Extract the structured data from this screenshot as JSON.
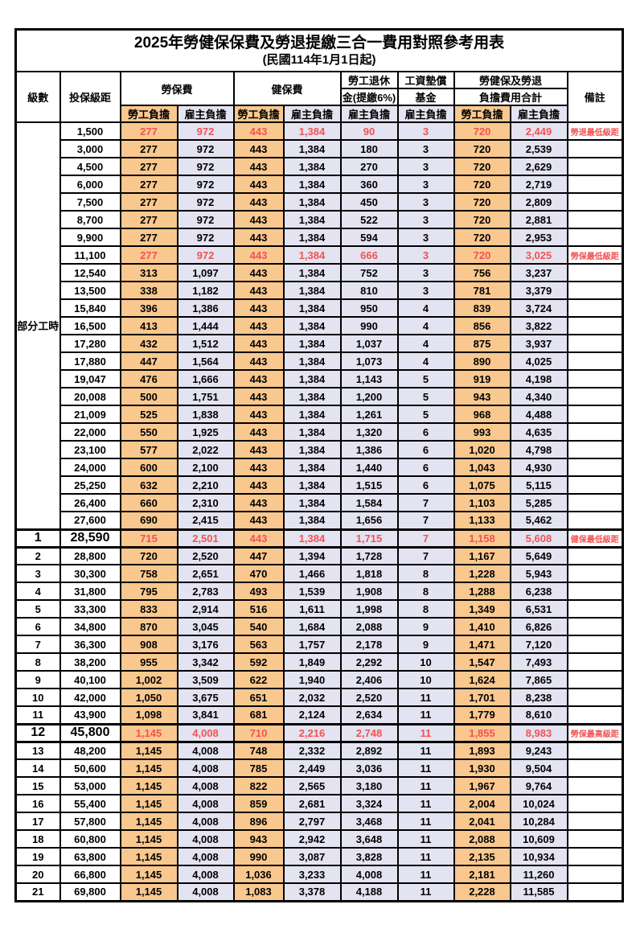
{
  "title": "2025年勞健保保費及勞退提繳三合一費用對照參考用表",
  "subtitle": "(民國114年1月1日起)",
  "columns": {
    "level": "級數",
    "bracket": "投保級距",
    "labor_insurance": "勞保費",
    "health_insurance": "健保費",
    "pension": [
      "勞工退休",
      "金(提繳6%)"
    ],
    "wage_fund": [
      "工資墊償",
      "基金"
    ],
    "total": [
      "勞健保及勞退",
      "負擔費用合計"
    ],
    "remark": "備註",
    "employee_burden": "勞工負擔",
    "employer_burden": "雇主負擔"
  },
  "part_time": {
    "label": "部分工時",
    "rowspan": 23
  },
  "colors": {
    "employee_bg": "#F9C88F",
    "employer_bg": "#E3E3F1",
    "highlight_red": "#F25252",
    "border": "#000000"
  },
  "rows": [
    {
      "bracket": "1,500",
      "cells": [
        "277",
        "972",
        "443",
        "1,384",
        "90",
        "3",
        "720",
        "2,449"
      ],
      "note": "勞退最低級距",
      "red": true
    },
    {
      "bracket": "3,000",
      "cells": [
        "277",
        "972",
        "443",
        "1,384",
        "180",
        "3",
        "720",
        "2,539"
      ],
      "note": ""
    },
    {
      "bracket": "4,500",
      "cells": [
        "277",
        "972",
        "443",
        "1,384",
        "270",
        "3",
        "720",
        "2,629"
      ],
      "note": ""
    },
    {
      "bracket": "6,000",
      "cells": [
        "277",
        "972",
        "443",
        "1,384",
        "360",
        "3",
        "720",
        "2,719"
      ],
      "note": ""
    },
    {
      "bracket": "7,500",
      "cells": [
        "277",
        "972",
        "443",
        "1,384",
        "450",
        "3",
        "720",
        "2,809"
      ],
      "note": ""
    },
    {
      "bracket": "8,700",
      "cells": [
        "277",
        "972",
        "443",
        "1,384",
        "522",
        "3",
        "720",
        "2,881"
      ],
      "note": ""
    },
    {
      "bracket": "9,900",
      "cells": [
        "277",
        "972",
        "443",
        "1,384",
        "594",
        "3",
        "720",
        "2,953"
      ],
      "note": ""
    },
    {
      "bracket": "11,100",
      "cells": [
        "277",
        "972",
        "443",
        "1,384",
        "666",
        "3",
        "720",
        "3,025"
      ],
      "note": "勞保最低級距",
      "red": true
    },
    {
      "bracket": "12,540",
      "cells": [
        "313",
        "1,097",
        "443",
        "1,384",
        "752",
        "3",
        "756",
        "3,237"
      ],
      "note": ""
    },
    {
      "bracket": "13,500",
      "cells": [
        "338",
        "1,182",
        "443",
        "1,384",
        "810",
        "3",
        "781",
        "3,379"
      ],
      "note": ""
    },
    {
      "bracket": "15,840",
      "cells": [
        "396",
        "1,386",
        "443",
        "1,384",
        "950",
        "4",
        "839",
        "3,724"
      ],
      "note": ""
    },
    {
      "bracket": "16,500",
      "cells": [
        "413",
        "1,444",
        "443",
        "1,384",
        "990",
        "4",
        "856",
        "3,822"
      ],
      "note": ""
    },
    {
      "bracket": "17,280",
      "cells": [
        "432",
        "1,512",
        "443",
        "1,384",
        "1,037",
        "4",
        "875",
        "3,937"
      ],
      "note": ""
    },
    {
      "bracket": "17,880",
      "cells": [
        "447",
        "1,564",
        "443",
        "1,384",
        "1,073",
        "4",
        "890",
        "4,025"
      ],
      "note": ""
    },
    {
      "bracket": "19,047",
      "cells": [
        "476",
        "1,666",
        "443",
        "1,384",
        "1,143",
        "5",
        "919",
        "4,198"
      ],
      "note": ""
    },
    {
      "bracket": "20,008",
      "cells": [
        "500",
        "1,751",
        "443",
        "1,384",
        "1,200",
        "5",
        "943",
        "4,340"
      ],
      "note": ""
    },
    {
      "bracket": "21,009",
      "cells": [
        "525",
        "1,838",
        "443",
        "1,384",
        "1,261",
        "5",
        "968",
        "4,488"
      ],
      "note": ""
    },
    {
      "bracket": "22,000",
      "cells": [
        "550",
        "1,925",
        "443",
        "1,384",
        "1,320",
        "6",
        "993",
        "4,635"
      ],
      "note": ""
    },
    {
      "bracket": "23,100",
      "cells": [
        "577",
        "2,022",
        "443",
        "1,384",
        "1,386",
        "6",
        "1,020",
        "4,798"
      ],
      "note": ""
    },
    {
      "bracket": "24,000",
      "cells": [
        "600",
        "2,100",
        "443",
        "1,384",
        "1,440",
        "6",
        "1,043",
        "4,930"
      ],
      "note": ""
    },
    {
      "bracket": "25,250",
      "cells": [
        "632",
        "2,210",
        "443",
        "1,384",
        "1,515",
        "6",
        "1,075",
        "5,115"
      ],
      "note": ""
    },
    {
      "bracket": "26,400",
      "cells": [
        "660",
        "2,310",
        "443",
        "1,384",
        "1,584",
        "7",
        "1,103",
        "5,285"
      ],
      "note": ""
    },
    {
      "bracket": "27,600",
      "cells": [
        "690",
        "2,415",
        "443",
        "1,384",
        "1,656",
        "7",
        "1,133",
        "5,462"
      ],
      "note": ""
    },
    {
      "level": "1",
      "bracket": "28,590",
      "cells": [
        "715",
        "2,501",
        "443",
        "1,384",
        "1,715",
        "7",
        "1,158",
        "5,608"
      ],
      "note": "健保最低級距",
      "red": true,
      "big": true
    },
    {
      "level": "2",
      "bracket": "28,800",
      "cells": [
        "720",
        "2,520",
        "447",
        "1,394",
        "1,728",
        "7",
        "1,167",
        "5,649"
      ],
      "note": ""
    },
    {
      "level": "3",
      "bracket": "30,300",
      "cells": [
        "758",
        "2,651",
        "470",
        "1,466",
        "1,818",
        "8",
        "1,228",
        "5,943"
      ],
      "note": ""
    },
    {
      "level": "4",
      "bracket": "31,800",
      "cells": [
        "795",
        "2,783",
        "493",
        "1,539",
        "1,908",
        "8",
        "1,288",
        "6,238"
      ],
      "note": ""
    },
    {
      "level": "5",
      "bracket": "33,300",
      "cells": [
        "833",
        "2,914",
        "516",
        "1,611",
        "1,998",
        "8",
        "1,349",
        "6,531"
      ],
      "note": ""
    },
    {
      "level": "6",
      "bracket": "34,800",
      "cells": [
        "870",
        "3,045",
        "540",
        "1,684",
        "2,088",
        "9",
        "1,410",
        "6,826"
      ],
      "note": ""
    },
    {
      "level": "7",
      "bracket": "36,300",
      "cells": [
        "908",
        "3,176",
        "563",
        "1,757",
        "2,178",
        "9",
        "1,471",
        "7,120"
      ],
      "note": ""
    },
    {
      "level": "8",
      "bracket": "38,200",
      "cells": [
        "955",
        "3,342",
        "592",
        "1,849",
        "2,292",
        "10",
        "1,547",
        "7,493"
      ],
      "note": ""
    },
    {
      "level": "9",
      "bracket": "40,100",
      "cells": [
        "1,002",
        "3,509",
        "622",
        "1,940",
        "2,406",
        "10",
        "1,624",
        "7,865"
      ],
      "note": ""
    },
    {
      "level": "10",
      "bracket": "42,000",
      "cells": [
        "1,050",
        "3,675",
        "651",
        "2,032",
        "2,520",
        "11",
        "1,701",
        "8,238"
      ],
      "note": ""
    },
    {
      "level": "11",
      "bracket": "43,900",
      "cells": [
        "1,098",
        "3,841",
        "681",
        "2,124",
        "2,634",
        "11",
        "1,779",
        "8,610"
      ],
      "note": ""
    },
    {
      "level": "12",
      "bracket": "45,800",
      "cells": [
        "1,145",
        "4,008",
        "710",
        "2,216",
        "2,748",
        "11",
        "1,855",
        "8,983"
      ],
      "note": "勞保最高級距",
      "red": true,
      "big": true
    },
    {
      "level": "13",
      "bracket": "48,200",
      "cells": [
        "1,145",
        "4,008",
        "748",
        "2,332",
        "2,892",
        "11",
        "1,893",
        "9,243"
      ],
      "note": ""
    },
    {
      "level": "14",
      "bracket": "50,600",
      "cells": [
        "1,145",
        "4,008",
        "785",
        "2,449",
        "3,036",
        "11",
        "1,930",
        "9,504"
      ],
      "note": ""
    },
    {
      "level": "15",
      "bracket": "53,000",
      "cells": [
        "1,145",
        "4,008",
        "822",
        "2,565",
        "3,180",
        "11",
        "1,967",
        "9,764"
      ],
      "note": ""
    },
    {
      "level": "16",
      "bracket": "55,400",
      "cells": [
        "1,145",
        "4,008",
        "859",
        "2,681",
        "3,324",
        "11",
        "2,004",
        "10,024"
      ],
      "note": ""
    },
    {
      "level": "17",
      "bracket": "57,800",
      "cells": [
        "1,145",
        "4,008",
        "896",
        "2,797",
        "3,468",
        "11",
        "2,041",
        "10,284"
      ],
      "note": ""
    },
    {
      "level": "18",
      "bracket": "60,800",
      "cells": [
        "1,145",
        "4,008",
        "943",
        "2,942",
        "3,648",
        "11",
        "2,088",
        "10,609"
      ],
      "note": ""
    },
    {
      "level": "19",
      "bracket": "63,800",
      "cells": [
        "1,145",
        "4,008",
        "990",
        "3,087",
        "3,828",
        "11",
        "2,135",
        "10,934"
      ],
      "note": ""
    },
    {
      "level": "20",
      "bracket": "66,800",
      "cells": [
        "1,145",
        "4,008",
        "1,036",
        "3,233",
        "4,008",
        "11",
        "2,181",
        "11,260"
      ],
      "note": ""
    },
    {
      "level": "21",
      "bracket": "69,800",
      "cells": [
        "1,145",
        "4,008",
        "1,083",
        "3,378",
        "4,188",
        "11",
        "2,228",
        "11,585"
      ],
      "note": ""
    }
  ]
}
